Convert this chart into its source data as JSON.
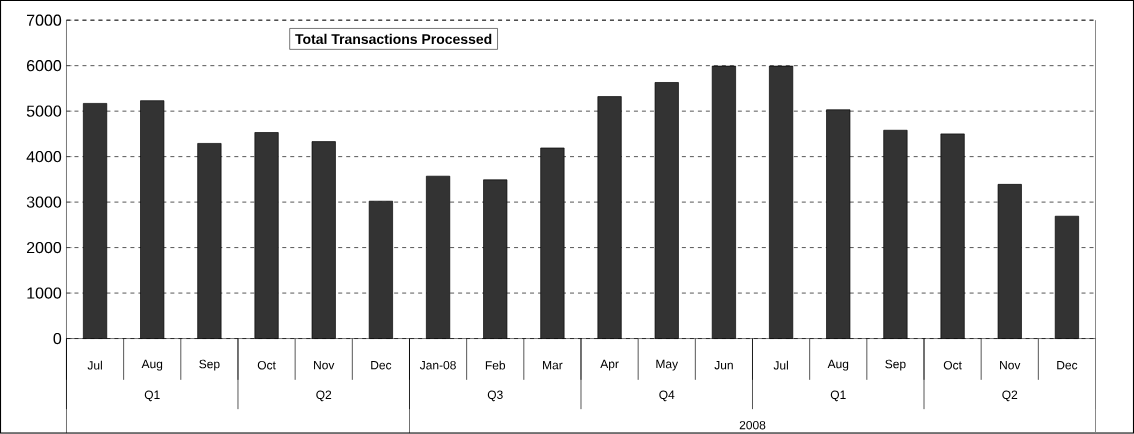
{
  "chart_data": {
    "type": "bar",
    "title": "Total Transactions Processed",
    "categories": [
      "Jul",
      "Aug",
      "Sep",
      "Oct",
      "Nov",
      "Dec",
      "Jan-08",
      "Feb",
      "Mar",
      "Apr",
      "May",
      "Jun",
      "Jul",
      "Aug",
      "Sep",
      "Oct",
      "Nov",
      "Dec"
    ],
    "values": [
      5170,
      5230,
      4290,
      4530,
      4330,
      3020,
      3570,
      3490,
      4190,
      5320,
      5630,
      5990,
      5990,
      5030,
      4580,
      4500,
      3390,
      2690
    ],
    "color": "#333333",
    "ylim": [
      0,
      7000
    ],
    "yticks": [
      0,
      1000,
      2000,
      3000,
      4000,
      5000,
      6000,
      7000
    ],
    "grid": "y",
    "annotations": [
      "Q1",
      "Q2",
      "Q3",
      "Q4",
      "Q1",
      "Q2",
      "2008"
    ]
  }
}
